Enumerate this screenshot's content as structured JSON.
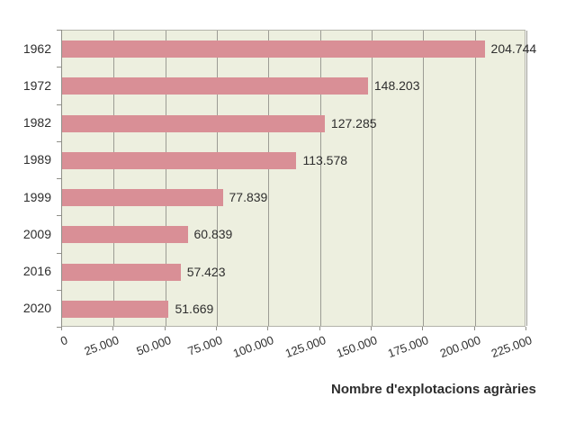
{
  "chart_data": {
    "type": "bar",
    "orientation": "horizontal",
    "title": "",
    "xlabel": "Nombre d'explotacions agràries",
    "ylabel": "",
    "categories": [
      "1962",
      "1972",
      "1982",
      "1989",
      "1999",
      "2009",
      "2016",
      "2020"
    ],
    "values": [
      204744,
      148203,
      127285,
      113578,
      77839,
      60839,
      57423,
      51669
    ],
    "value_labels": [
      "204.744",
      "148.203",
      "127.285",
      "113.578",
      "77.839",
      "60.839",
      "57.423",
      "51.669"
    ],
    "x_ticks": [
      "0",
      "25.000",
      "50.000",
      "75.000",
      "100.000",
      "125.000",
      "150.000",
      "175.000",
      "200.000",
      "225.000"
    ],
    "x_tick_values": [
      0,
      25000,
      50000,
      75000,
      100000,
      125000,
      150000,
      175000,
      200000,
      225000
    ],
    "xlim": [
      0,
      225000
    ],
    "grid": "vertical-major",
    "legend": "none",
    "colors": {
      "bar": "#d98f96",
      "plot_bg": "#edefdf",
      "gridline": "#9c9c94",
      "axis": "#8f8f88",
      "text": "#2e2e2e"
    }
  }
}
